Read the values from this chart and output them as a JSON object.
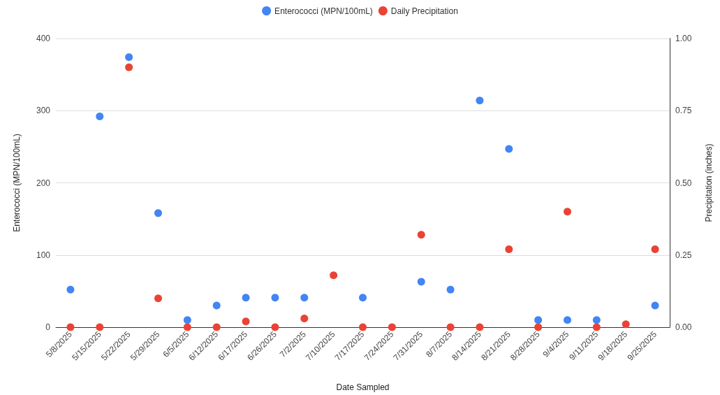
{
  "chart_data": {
    "type": "scatter",
    "xlabel": "Date Sampled",
    "ylabel": "Enterococci (MPN/100mL)",
    "y2label": "Precipitation (inches)",
    "categories": [
      "5/8/2025",
      "5/15/2025",
      "5/22/2025",
      "5/29/2025",
      "6/5/2025",
      "6/12/2025",
      "6/17/2025",
      "6/26/2025",
      "7/2/2025",
      "7/10/2025",
      "7/17/2025",
      "7/24/2025",
      "7/31/2025",
      "8/7/2025",
      "8/14/2025",
      "8/21/2025",
      "8/28/2025",
      "9/4/2025",
      "9/11/2025",
      "9/18/2025",
      "9/25/2025"
    ],
    "series": [
      {
        "name": "Enterococci (MPN/100mL)",
        "color": "#4285f4",
        "values": [
          52,
          292,
          374,
          158,
          10,
          30,
          41,
          41,
          41,
          null,
          41,
          null,
          63,
          52,
          314,
          247,
          10,
          10,
          10,
          null,
          30
        ]
      },
      {
        "name": "Daily Precipitation",
        "color": "#ea4335",
        "axis": "y2",
        "values": [
          0,
          0,
          0.9,
          0.1,
          0,
          0,
          0.02,
          0,
          0.03,
          0.18,
          0,
          0,
          0.32,
          0,
          0,
          0.27,
          0,
          0.4,
          0,
          0.01,
          0.27
        ]
      }
    ],
    "ylim": [
      0,
      400
    ],
    "yticks": [
      0,
      100,
      200,
      300,
      400
    ],
    "y2lim": [
      0,
      1
    ],
    "y2ticks": [
      {
        "value": 0,
        "label": "0.00"
      },
      {
        "value": 0.25,
        "label": "0.25"
      },
      {
        "value": 0.5,
        "label": "0.50"
      },
      {
        "value": 0.75,
        "label": "0.75"
      },
      {
        "value": 1,
        "label": "1.00"
      }
    ],
    "grid": "y",
    "legend": "top",
    "marker": "circle"
  }
}
